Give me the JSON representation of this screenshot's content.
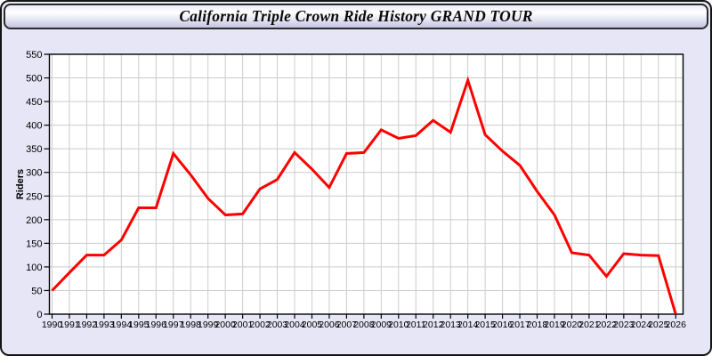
{
  "title": "California Triple Crown Ride History GRAND TOUR",
  "colors": {
    "line": "#ff0000",
    "panel_background": "#e6e6f6",
    "plot_background": "#ffffff",
    "gridline": "#cccccc",
    "axis": "#000000",
    "text": "#000000"
  },
  "chart_data": {
    "type": "line",
    "title": "California Triple Crown Ride History GRAND TOUR",
    "xlabel": "",
    "ylabel": "Riders",
    "x": [
      1990,
      1991,
      1992,
      1993,
      1994,
      1995,
      1996,
      1997,
      1998,
      1999,
      2000,
      2001,
      2002,
      2003,
      2004,
      2005,
      2006,
      2007,
      2008,
      2009,
      2010,
      2011,
      2012,
      2013,
      2014,
      2015,
      2016,
      2017,
      2018,
      2019,
      2020,
      2021,
      2022,
      2023,
      2024,
      2025,
      2026
    ],
    "series": [
      {
        "name": "Riders",
        "color": "#ff0000",
        "values": [
          50,
          88,
          125,
          125,
          157,
          225,
          225,
          340,
          295,
          245,
          210,
          212,
          265,
          285,
          342,
          307,
          268,
          340,
          342,
          390,
          372,
          378,
          410,
          385,
          495,
          380,
          345,
          315,
          260,
          210,
          130,
          125,
          80,
          128,
          125,
          124,
          0
        ]
      }
    ],
    "ylim": [
      0,
      550
    ],
    "y_tick_step": 50,
    "y_ticks": [
      0,
      50,
      100,
      150,
      200,
      250,
      300,
      350,
      400,
      450,
      500,
      550
    ],
    "grid": true,
    "legend_position": "none"
  }
}
